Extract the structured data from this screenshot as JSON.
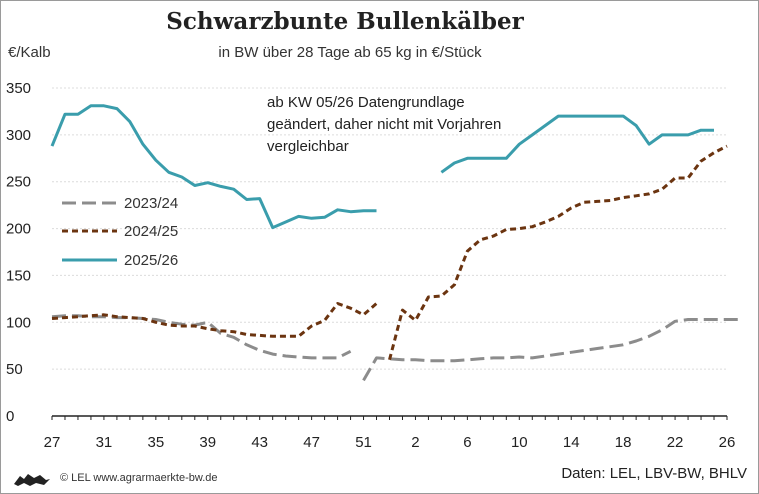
{
  "chart_data": {
    "type": "line",
    "title": "Schwarzbunte Bullenkälber",
    "subtitle": "in BW über 28 Tage ab 65 kg in €/Stück",
    "ylabel": "€/Kalb",
    "ylim": [
      0,
      350
    ],
    "y_ticks": [
      "0",
      "50",
      "100",
      "150",
      "200",
      "250",
      "300",
      "350"
    ],
    "x_ticks": [
      "27",
      "31",
      "35",
      "39",
      "43",
      "47",
      "51",
      "2",
      "6",
      "10",
      "14",
      "18",
      "22",
      "26"
    ],
    "grid": "horizontal",
    "legend_position": "left",
    "annotation": "ab KW 05/26 Datengrundlage geändert, daher nicht mit Vorjahren vergleichbar",
    "series": [
      {
        "name": "2023/24",
        "color": "#8c8c8c",
        "style": "dashed",
        "values": [
          106,
          107,
          107,
          106,
          106,
          105,
          105,
          104,
          103,
          100,
          98,
          97,
          100,
          88,
          84,
          76,
          70,
          66,
          64,
          63,
          62,
          62,
          62,
          69,
          38,
          62,
          61,
          60,
          60,
          59,
          59,
          59,
          60,
          61,
          62,
          62,
          63,
          62,
          64,
          66,
          68,
          70,
          72,
          74,
          76,
          80,
          85,
          92,
          101,
          103,
          103,
          103,
          103,
          103
        ]
      },
      {
        "name": "2024/25",
        "color": "#6b3410",
        "style": "dashed",
        "values": [
          104,
          105,
          106,
          107,
          108,
          106,
          105,
          104,
          100,
          97,
          96,
          96,
          93,
          91,
          90,
          87,
          86,
          85,
          85,
          85,
          96,
          102,
          120,
          115,
          108,
          120,
          60,
          113,
          102,
          127,
          128,
          140,
          176,
          188,
          192,
          199,
          200,
          202,
          207,
          213,
          222,
          228,
          229,
          230,
          233,
          235,
          237,
          242,
          254,
          254,
          272,
          281,
          288
        ]
      },
      {
        "name": "2025/26",
        "color": "#3a9dac",
        "style": "solid",
        "values": [
          288,
          322,
          322,
          331,
          331,
          328,
          314,
          290,
          273,
          260,
          255,
          246,
          249,
          245,
          242,
          231,
          232,
          201,
          207,
          213,
          211,
          212,
          220,
          218,
          219,
          219,
          null,
          null,
          null,
          null,
          260,
          270,
          275,
          275,
          275,
          275,
          290,
          300,
          310,
          320,
          320,
          320,
          320,
          320,
          320,
          310,
          290,
          300,
          300,
          300,
          305,
          305
        ]
      }
    ]
  },
  "header": {
    "unit_label": "€/Kalb",
    "annotation_lines": [
      "ab KW 05/26 Datengrundlage",
      "geändert, daher nicht mit Vorjahren",
      "vergleichbar"
    ]
  },
  "footer": {
    "credit": "© LEL www.agrarmaerkte-bw.de",
    "source": "Daten: LEL, LBV-BW, BHLV"
  }
}
